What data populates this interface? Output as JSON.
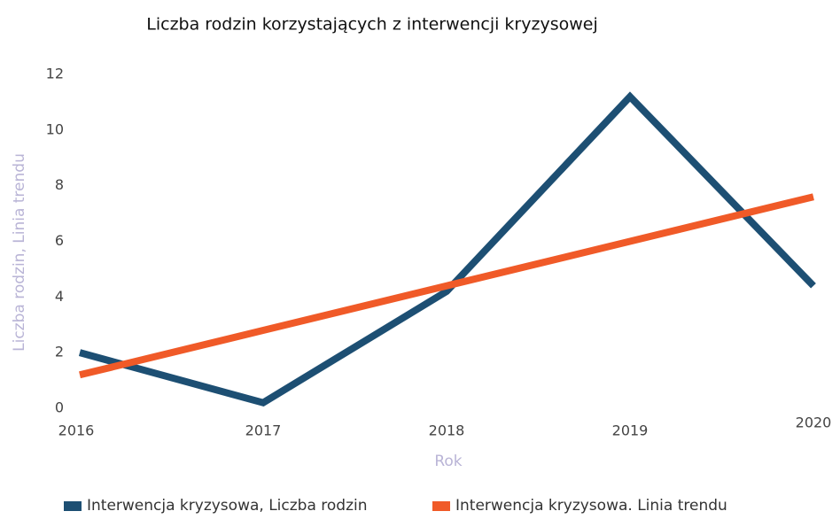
{
  "chart_data": {
    "type": "line",
    "title": "Liczba rodzin korzystających z interwencji kryzysowej",
    "x_label": "Rok",
    "y_label": "Liczba rodzin, Linia trendu",
    "categories": [
      "2016",
      "2017",
      "2018",
      "2019",
      "2020"
    ],
    "series": [
      {
        "name": "Interwencja kryzysowa, Liczba rodzin",
        "color": "#1d4f73",
        "values": [
          2,
          0.2,
          4.2,
          11.2,
          4.4
        ]
      },
      {
        "name": "Interwencja kryzysowa. Linia trendu",
        "color": "#f05a28",
        "values": [
          1.2,
          2.8,
          4.4,
          6.0,
          7.6
        ]
      }
    ],
    "ylim": [
      0,
      12
    ],
    "yticks": [
      0,
      2,
      4,
      6,
      8,
      10,
      12
    ],
    "grid": false,
    "legend": "bottom"
  }
}
